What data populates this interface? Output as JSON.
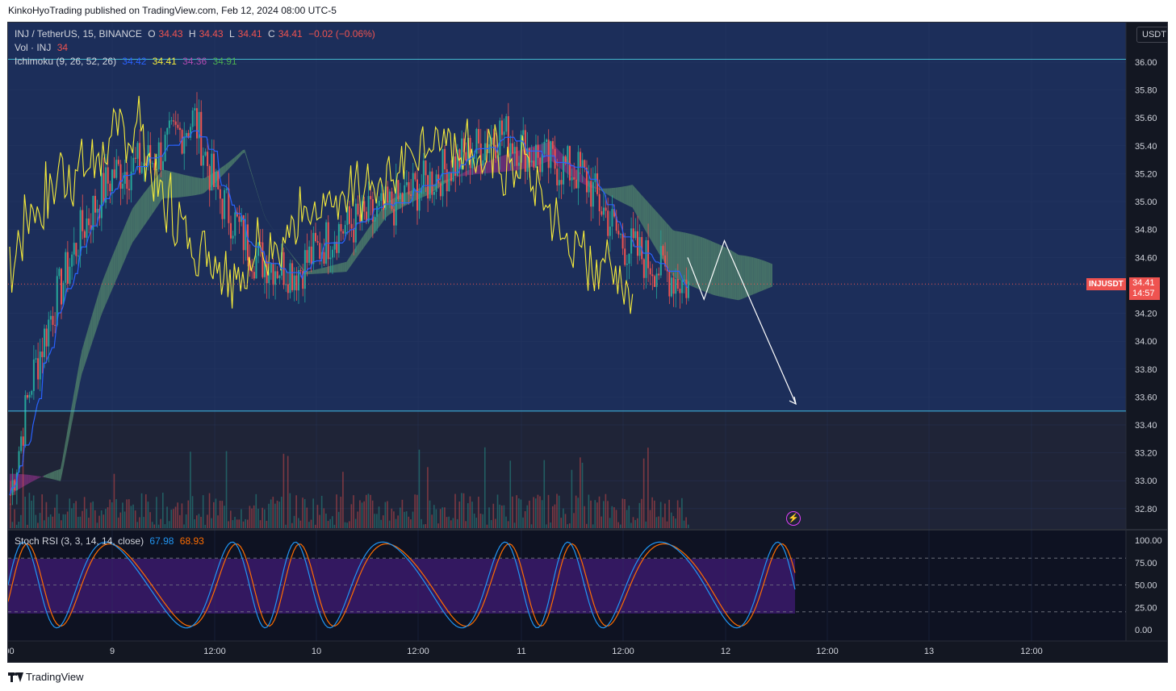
{
  "header": {
    "published_text": "KinkoHyoTrading published on TradingView.com, Feb 12, 2024 08:00 UTC-5"
  },
  "footer": {
    "brand": "TradingView"
  },
  "colors": {
    "background": "#131722",
    "upper_zone": "#1c2e5a",
    "lower_zone": "#1f2437",
    "kumo_bear": "#7a2f7a",
    "kumo_bull": "#4f7f6a",
    "tenkan": "#2962ff",
    "chikou": "#f5eb3b",
    "stoch_k": "#2196f3",
    "stoch_d": "#ff6d00",
    "stoch_band": "#5b2a8c",
    "candle_up": "#26a69a",
    "candle_down": "#ef5350",
    "current_price": "#ef5350",
    "projection": "#ffffff"
  },
  "legend": {
    "symbol": "INJ / TetherUS, 15, BINANCE",
    "ohlc": [
      {
        "k": "O",
        "v": "34.43"
      },
      {
        "k": "H",
        "v": "34.43"
      },
      {
        "k": "L",
        "v": "34.41"
      },
      {
        "k": "C",
        "v": "34.41"
      }
    ],
    "change": "−0.02 (−0.06%)",
    "volume_label": "Vol · INJ",
    "volume_value": "34",
    "ichimoku_label": "Ichimoku (9, 26, 52, 26)",
    "ichimoku_values": [
      "34.42",
      "34.41",
      "34.36",
      "34.91"
    ],
    "stoch_label": "Stoch RSI (3, 3, 14, 14, close)",
    "stoch_k": "67.98",
    "stoch_d": "68.93"
  },
  "price_axis": {
    "currency": "USDT",
    "ticks": [
      "36.00",
      "35.80",
      "35.60",
      "35.40",
      "35.20",
      "35.00",
      "34.80",
      "34.60",
      "34.40",
      "34.20",
      "34.00",
      "33.80",
      "33.60",
      "33.40",
      "33.20",
      "33.00",
      "32.80"
    ],
    "current_symbol": "INJUSDT",
    "current_price": "34.41",
    "countdown": "14:57"
  },
  "stoch_axis": {
    "ticks": [
      "100.00",
      "75.00",
      "50.00",
      "25.00",
      "0.00"
    ]
  },
  "time_axis": {
    "ticks": [
      ":00",
      "9",
      "12:00",
      "10",
      "12:00",
      "11",
      "12:00",
      "12",
      "12:00",
      "13",
      "12:00"
    ]
  },
  "chart_data": {
    "type": "line",
    "title": "INJ / TetherUS, 15, BINANCE",
    "ylim": [
      32.7,
      36.2
    ],
    "horizontal_levels": [
      36.02,
      33.5
    ],
    "current_price": 34.41,
    "price_path": [
      {
        "t": 0,
        "v": 32.9
      },
      {
        "t": 0.1,
        "v": 33.7
      },
      {
        "t": 0.2,
        "v": 34.2
      },
      {
        "t": 0.35,
        "v": 34.8
      },
      {
        "t": 0.5,
        "v": 35.2
      },
      {
        "t": 0.7,
        "v": 35.3
      },
      {
        "t": 0.9,
        "v": 35.6
      },
      {
        "t": 1.0,
        "v": 35.1
      },
      {
        "t": 1.2,
        "v": 34.6
      },
      {
        "t": 1.4,
        "v": 34.5
      },
      {
        "t": 1.6,
        "v": 34.8
      },
      {
        "t": 1.8,
        "v": 34.9
      },
      {
        "t": 2.0,
        "v": 35.1
      },
      {
        "t": 2.2,
        "v": 35.3
      },
      {
        "t": 2.4,
        "v": 35.5
      },
      {
        "t": 2.6,
        "v": 35.3
      },
      {
        "t": 2.8,
        "v": 35.2
      },
      {
        "t": 3.0,
        "v": 34.7
      },
      {
        "t": 3.2,
        "v": 34.5
      },
      {
        "t": 3.32,
        "v": 34.4
      }
    ],
    "projection": [
      {
        "t": 3.32,
        "v": 34.6
      },
      {
        "t": 3.4,
        "v": 34.3
      },
      {
        "t": 3.5,
        "v": 34.72
      },
      {
        "t": 3.85,
        "v": 33.55
      }
    ],
    "stoch_rsi": {
      "ylim": [
        0,
        100
      ],
      "bands": [
        80,
        50,
        20
      ],
      "k_last": 67.98,
      "d_last": 68.93
    }
  }
}
